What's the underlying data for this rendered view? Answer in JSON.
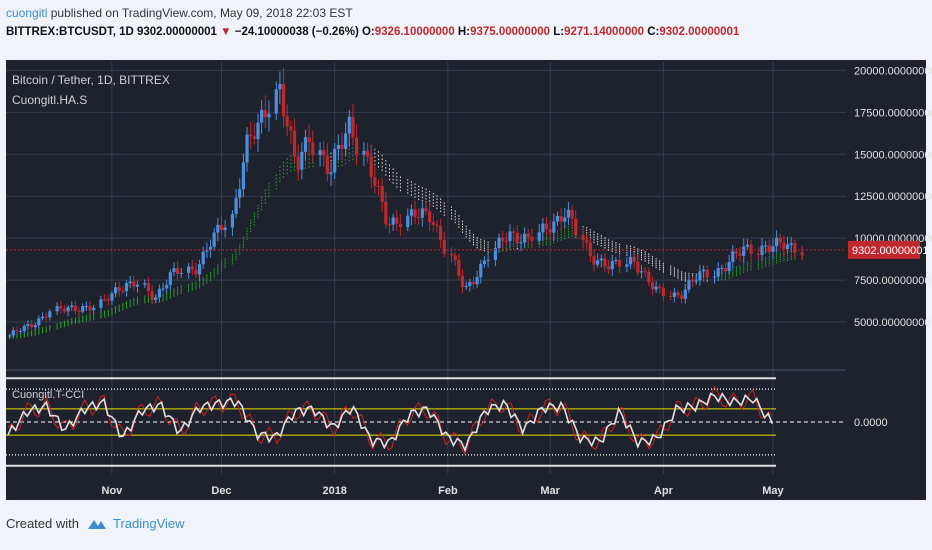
{
  "header": {
    "user": "cuongitl",
    "published": "published on TradingView.com, May 09, 2018 22:03 EST"
  },
  "symbol_line": {
    "symbol": "BITTREX:BTCUSDT, 1D",
    "last": "9302.00000001",
    "change": "−24.10000038 (−0.26%)",
    "o_label": "O:",
    "o": "9326.10000000",
    "h_label": "H:",
    "h": "9375.00000000",
    "l_label": "L:",
    "l": "9271.14000000",
    "c_label": "C:",
    "c": "9302.00000001"
  },
  "footer": {
    "created": "Created with",
    "brand": "TradingView"
  },
  "colors": {
    "up": "#4a8fe0",
    "down": "#c0282e",
    "bg": "#1e222d",
    "grid": "#363c4e",
    "ha_green": "#29a329",
    "ha_white": "#d8d8d8",
    "cci": "#e0e0e0",
    "cci_signal": "#d02020",
    "band": "#e8e000"
  },
  "chart_data": [
    {
      "type": "candlestick",
      "title": "Bitcoin / Tether, 1D, BITTREX",
      "indicator": "Cuongitl.HA.S",
      "ylim": [
        2500,
        20500
      ],
      "yticks": [
        "5000.00000000",
        "7500.00000000",
        "10000.00000000",
        "12500.00000000",
        "15000.00000000",
        "17500.00000000",
        "20000.00000000"
      ],
      "ytick_values": [
        5000,
        7500,
        10000,
        12500,
        15000,
        17500,
        20000
      ],
      "xticks": [
        "Nov",
        "Dec",
        "2018",
        "Feb",
        "Mar",
        "Apr",
        "May"
      ],
      "x_range": [
        "2017-10-03",
        "2018-05-21"
      ],
      "xtick_dates": [
        "2017-11-01",
        "2017-12-01",
        "2018-01-01",
        "2018-02-01",
        "2018-03-01",
        "2018-04-01",
        "2018-05-01"
      ],
      "last_price_label": "9302.00000001",
      "last_price": 9302,
      "close_series": [
        [
          "2017-10-04",
          4200
        ],
        [
          "2017-10-10",
          4800
        ],
        [
          "2017-10-16",
          5600
        ],
        [
          "2017-10-22",
          5900
        ],
        [
          "2017-10-28",
          5800
        ],
        [
          "2017-11-03",
          7100
        ],
        [
          "2017-11-09",
          7200
        ],
        [
          "2017-11-13",
          6500
        ],
        [
          "2017-11-18",
          7800
        ],
        [
          "2017-11-24",
          8200
        ],
        [
          "2017-11-29",
          9800
        ],
        [
          "2017-12-04",
          11200
        ],
        [
          "2017-12-08",
          15500
        ],
        [
          "2017-12-12",
          16500
        ],
        [
          "2017-12-17",
          19300
        ],
        [
          "2017-12-22",
          14000
        ],
        [
          "2017-12-26",
          16200
        ],
        [
          "2017-12-31",
          13800
        ],
        [
          "2018-01-06",
          17000
        ],
        [
          "2018-01-10",
          14500
        ],
        [
          "2018-01-16",
          11000
        ],
        [
          "2018-01-22",
          11200
        ],
        [
          "2018-01-28",
          11500
        ],
        [
          "2018-02-02",
          8800
        ],
        [
          "2018-02-06",
          6900
        ],
        [
          "2018-02-12",
          8600
        ],
        [
          "2018-02-18",
          10400
        ],
        [
          "2018-02-24",
          9800
        ],
        [
          "2018-03-02",
          11000
        ],
        [
          "2018-03-06",
          11500
        ],
        [
          "2018-03-12",
          9100
        ],
        [
          "2018-03-18",
          8200
        ],
        [
          "2018-03-24",
          8800
        ],
        [
          "2018-03-30",
          6900
        ],
        [
          "2018-04-06",
          6600
        ],
        [
          "2018-04-12",
          7900
        ],
        [
          "2018-04-18",
          8200
        ],
        [
          "2018-04-24",
          9500
        ],
        [
          "2018-04-30",
          9300
        ],
        [
          "2018-05-05",
          9800
        ],
        [
          "2018-05-09",
          9302
        ]
      ]
    },
    {
      "type": "line",
      "title": "Cuongitl.T-CCI",
      "yticks": [
        "0.0000"
      ],
      "ytick_values": [
        0
      ],
      "bands": [
        100,
        -100
      ],
      "outer_bands": [
        250,
        -250
      ],
      "ylim": [
        -350,
        350
      ],
      "series": [
        {
          "values": [
            -100,
            80,
            120,
            -60,
            100,
            150,
            -120,
            90,
            130,
            -80,
            110,
            140,
            160,
            -90,
            -120,
            80,
            100,
            -50,
            120,
            -140,
            -160,
            60,
            100,
            -120,
            -180,
            90,
            140,
            -60,
            110,
            120,
            -130,
            -150,
            80,
            -160,
            -120,
            100,
            120,
            200,
            150,
            180,
            -10
          ]
        }
      ]
    }
  ]
}
